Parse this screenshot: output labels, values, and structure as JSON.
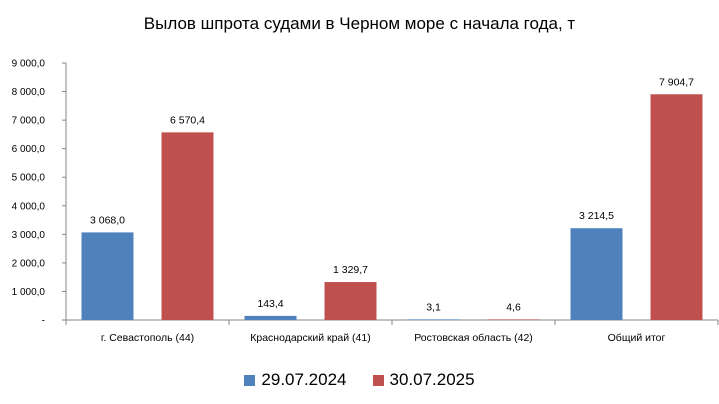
{
  "chart_data": {
    "type": "bar",
    "title": "Вылов шпрота судами в Черном море с начала  года, т",
    "categories": [
      "г. Севастополь (44)",
      "Краснодарский край (41)",
      "Ростовская область (42)",
      "Общий итог"
    ],
    "series": [
      {
        "name": "29.07.2024",
        "color": "#4f81bd",
        "values": [
          3068.0,
          143.4,
          3.1,
          3214.5
        ],
        "labels": [
          "3 068,0",
          "143,4",
          "3,1",
          "3 214,5"
        ]
      },
      {
        "name": "30.07.2025",
        "color": "#c0504d",
        "values": [
          6570.4,
          1329.7,
          4.6,
          7904.7
        ],
        "labels": [
          "6 570,4",
          "1 329,7",
          "4,6",
          "7 904,7"
        ]
      }
    ],
    "ylim": [
      0,
      9000
    ],
    "yticks": [
      0,
      1000,
      2000,
      3000,
      4000,
      5000,
      6000,
      7000,
      8000,
      9000
    ],
    "ytick_labels": [
      "-",
      "1 000,0",
      "2 000,0",
      "3 000,0",
      "4 000,0",
      "5 000,0",
      "6 000,0",
      "7 000,0",
      "8 000,0",
      "9 000,0"
    ],
    "xlabel": "",
    "ylabel": "",
    "grid": false,
    "legend_position": "bottom"
  }
}
